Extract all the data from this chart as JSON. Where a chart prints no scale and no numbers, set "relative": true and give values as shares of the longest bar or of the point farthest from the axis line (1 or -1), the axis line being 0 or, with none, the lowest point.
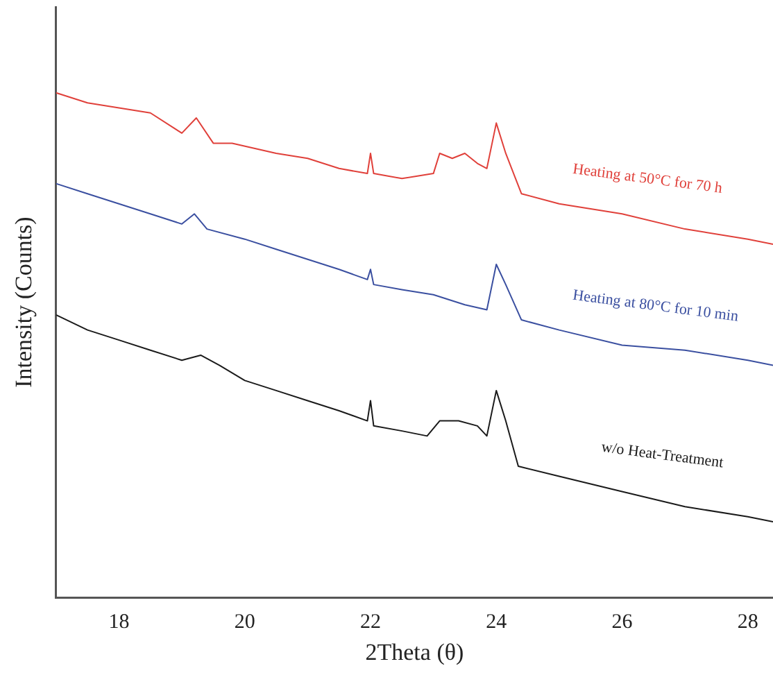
{
  "chart_data": {
    "type": "line",
    "xlabel": "2Theta (θ)",
    "ylabel": "Intensity (Counts)",
    "relative": true,
    "xlim": [
      17,
      28.4
    ],
    "xticks": [
      18,
      20,
      22,
      24,
      26,
      28
    ],
    "grid": false,
    "legend": false,
    "marker": "none",
    "line_style": "solid",
    "series": [
      {
        "name": "Heating at 50°C for 70 h",
        "color": "#e0403a",
        "x": [
          17,
          17.5,
          18,
          18.5,
          19,
          19.23,
          19.5,
          19.8,
          20.5,
          21,
          21.5,
          21.95,
          22,
          22.05,
          22.5,
          23,
          23.1,
          23.3,
          23.5,
          23.7,
          23.85,
          24,
          24.15,
          24.4,
          25,
          26,
          27,
          28,
          28.4
        ],
        "values": [
          1.0,
          0.98,
          0.97,
          0.96,
          0.92,
          0.95,
          0.9,
          0.9,
          0.88,
          0.87,
          0.85,
          0.84,
          0.88,
          0.84,
          0.83,
          0.84,
          0.88,
          0.87,
          0.88,
          0.86,
          0.85,
          0.94,
          0.88,
          0.8,
          0.78,
          0.76,
          0.73,
          0.71,
          0.7
        ]
      },
      {
        "name": "Heating at 80°C for 10 min",
        "color": "#3a4fa0",
        "x": [
          17,
          17.5,
          18,
          18.5,
          19,
          19.2,
          19.4,
          20,
          20.5,
          21,
          21.5,
          21.95,
          22,
          22.05,
          22.5,
          23,
          23.5,
          23.85,
          24,
          24.15,
          24.4,
          25,
          26,
          27,
          28,
          28.4
        ],
        "values": [
          0.82,
          0.8,
          0.78,
          0.76,
          0.74,
          0.76,
          0.73,
          0.71,
          0.69,
          0.67,
          0.65,
          0.63,
          0.65,
          0.62,
          0.61,
          0.6,
          0.58,
          0.57,
          0.66,
          0.62,
          0.55,
          0.53,
          0.5,
          0.49,
          0.47,
          0.46
        ]
      },
      {
        "name": "w/o Heat-Treatment",
        "color": "#1a1a1a",
        "x": [
          17,
          17.5,
          18,
          18.5,
          19,
          19.3,
          19.6,
          20,
          20.5,
          21,
          21.5,
          21.95,
          22,
          22.05,
          22.5,
          22.9,
          23.1,
          23.4,
          23.7,
          23.85,
          24,
          24.15,
          24.35,
          25,
          26,
          27,
          28,
          28.4
        ],
        "values": [
          0.56,
          0.53,
          0.51,
          0.49,
          0.47,
          0.48,
          0.46,
          0.43,
          0.41,
          0.39,
          0.37,
          0.35,
          0.39,
          0.34,
          0.33,
          0.32,
          0.35,
          0.35,
          0.34,
          0.32,
          0.41,
          0.35,
          0.26,
          0.24,
          0.21,
          0.18,
          0.16,
          0.15
        ]
      }
    ]
  }
}
